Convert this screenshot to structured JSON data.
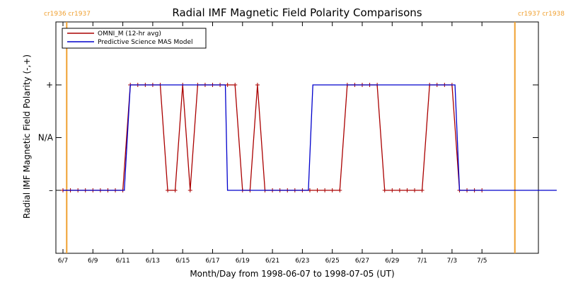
{
  "chart_data": {
    "type": "line",
    "title": "Radial IMF Magnetic Field Polarity Comparisons",
    "xlabel": "Month/Day from 1998-06-07 to 1998-07-05 (UT)",
    "ylabel": "Radial IMF Magnetic Field Polarity (-,+)",
    "x_unit": "day-of-period (0 = 6/7)",
    "xlim": [
      0,
      33
    ],
    "ylim": [
      -2,
      2
    ],
    "x_ticks": [
      {
        "x": 0,
        "label": "6/7"
      },
      {
        "x": 2,
        "label": "6/9"
      },
      {
        "x": 4,
        "label": "6/11"
      },
      {
        "x": 6,
        "label": "6/13"
      },
      {
        "x": 8,
        "label": "6/15"
      },
      {
        "x": 10,
        "label": "6/17"
      },
      {
        "x": 12,
        "label": "6/19"
      },
      {
        "x": 14,
        "label": "6/21"
      },
      {
        "x": 16,
        "label": "6/23"
      },
      {
        "x": 18,
        "label": "6/25"
      },
      {
        "x": 20,
        "label": "6/27"
      },
      {
        "x": 22,
        "label": "6/29"
      },
      {
        "x": 24,
        "label": "7/1"
      },
      {
        "x": 26,
        "label": "7/3"
      },
      {
        "x": 28,
        "label": "7/5"
      }
    ],
    "y_ticks": [
      {
        "y": 1,
        "label": "+"
      },
      {
        "y": 0,
        "label": "N/A"
      },
      {
        "y": -1,
        "label": "–"
      }
    ],
    "grid": false,
    "legend_position": "top-left",
    "vertical_markers": [
      {
        "x": 0.25,
        "label": "cr1936 cr1937",
        "color": "#f0a030",
        "label_side": "left"
      },
      {
        "x": 30.2,
        "label": "cr1937 cr1938",
        "color": "#f0a030",
        "label_side": "right"
      }
    ],
    "series": [
      {
        "name": "OMNI_M (12-hr avg)",
        "color": "#aa0000",
        "markers": true,
        "x": [
          0,
          0.5,
          1,
          1.5,
          2,
          2.5,
          3,
          3.5,
          4,
          4.5,
          5,
          5.5,
          6,
          6.5,
          7,
          7.5,
          8,
          8.5,
          9,
          9.5,
          10,
          10.5,
          11,
          11.5,
          12,
          12.5,
          13,
          13.5,
          14,
          14.5,
          15,
          15.5,
          16,
          16.5,
          17,
          17.5,
          18,
          18.5,
          19,
          19.5,
          20,
          20.5,
          21,
          21.5,
          22,
          22.5,
          23,
          23.5,
          24,
          24.5,
          25,
          25.5,
          26,
          26.5,
          27,
          27.5,
          28
        ],
        "y": [
          -1,
          -1,
          -1,
          -1,
          -1,
          -1,
          -1,
          -1,
          -1,
          1,
          1,
          1,
          1,
          1,
          -1,
          -1,
          1,
          -1,
          1,
          1,
          1,
          1,
          1,
          1,
          -1,
          -1,
          1,
          -1,
          -1,
          -1,
          -1,
          -1,
          -1,
          -1,
          -1,
          -1,
          -1,
          -1,
          1,
          1,
          1,
          1,
          1,
          -1,
          -1,
          -1,
          -1,
          -1,
          -1,
          1,
          1,
          1,
          1,
          -1,
          -1,
          -1,
          -1
        ]
      },
      {
        "name": "Predictive Science MAS Model",
        "color": "#0000cc",
        "markers": false,
        "x": [
          0,
          4.1,
          4.5,
          10.85,
          11.0,
          16.4,
          16.7,
          26.2,
          26.5,
          33
        ],
        "y": [
          -1,
          -1,
          1,
          1,
          -1,
          -1,
          1,
          1,
          -1,
          -1
        ]
      }
    ]
  }
}
